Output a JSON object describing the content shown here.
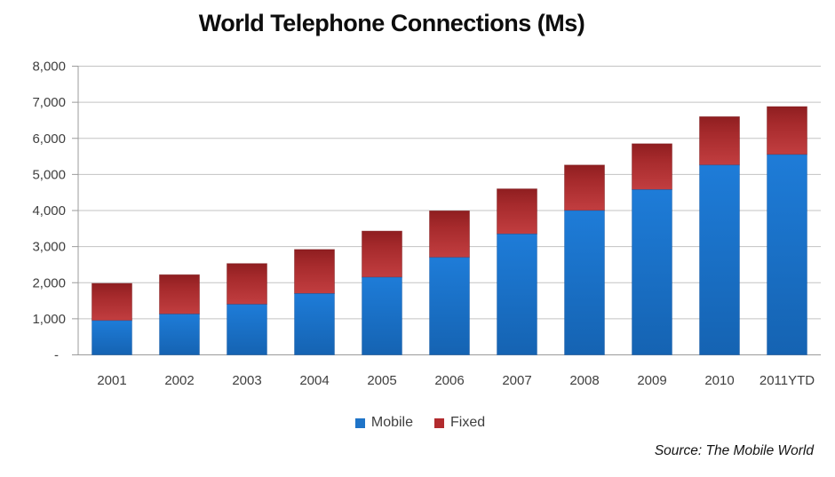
{
  "title": "World Telephone Connections (Ms)",
  "source_note": "Source: The Mobile World",
  "legend": [
    {
      "label": "Mobile",
      "color": "#1f74c8"
    },
    {
      "label": "Fixed",
      "color": "#b22b2e"
    }
  ],
  "colors": {
    "mobile_top": "#1e7cd8",
    "mobile_bottom": "#1563b2",
    "mobile_stroke": "#11519a",
    "fixed_top": "#8f1e20",
    "fixed_mid": "#a62a2c",
    "fixed_bottom": "#c23e40",
    "fixed_stroke": "#7c191b",
    "grid": "#c3c3c3",
    "axis": "#9b9b9b",
    "label_text": "#3f3f3f"
  },
  "chart_data": {
    "type": "bar",
    "stacked": true,
    "title": "World Telephone Connections (Ms)",
    "xlabel": "",
    "ylabel": "",
    "categories": [
      "2001",
      "2002",
      "2003",
      "2004",
      "2005",
      "2006",
      "2007",
      "2008",
      "2009",
      "2010",
      "2011YTD"
    ],
    "series": [
      {
        "name": "Mobile",
        "color": "#1f74c8",
        "values": [
          950,
          1130,
          1400,
          1700,
          2150,
          2700,
          3350,
          4000,
          4580,
          5260,
          5550
        ]
      },
      {
        "name": "Fixed",
        "color": "#b22b2e",
        "values": [
          1030,
          1090,
          1130,
          1220,
          1280,
          1290,
          1250,
          1260,
          1270,
          1340,
          1330
        ]
      }
    ],
    "stacked_totals": [
      1980,
      2220,
      2530,
      2920,
      3430,
      3990,
      4600,
      5260,
      5850,
      6600,
      6880
    ],
    "ylim": [
      0,
      8000
    ],
    "y_tick_interval": 1000,
    "y_tick_labels": [
      "-",
      "1,000",
      "2,000",
      "3,000",
      "4,000",
      "5,000",
      "6,000",
      "7,000",
      "8,000"
    ],
    "grid": true,
    "legend_position": "bottom"
  }
}
